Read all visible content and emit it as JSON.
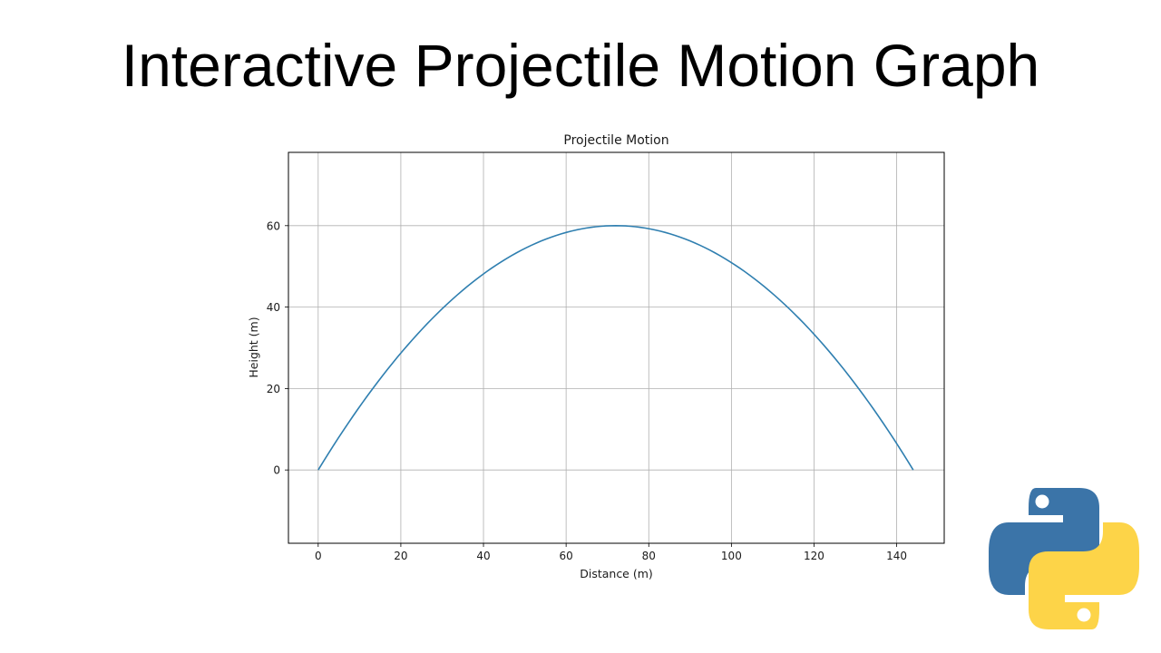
{
  "page": {
    "heading": "Interactive Projectile Motion Graph"
  },
  "logo": {
    "name": "python-logo-icon",
    "colors": {
      "blue": "#3b74a8",
      "yellow": "#fdd448"
    }
  },
  "chart_data": {
    "type": "line",
    "title": "Projectile Motion",
    "xlabel": "Distance (m)",
    "ylabel": "Height (m)",
    "xlim": [
      -7.2,
      151.5
    ],
    "ylim": [
      -18,
      78
    ],
    "xticks": [
      0,
      20,
      40,
      60,
      80,
      100,
      120,
      140
    ],
    "yticks": [
      0,
      20,
      40,
      60
    ],
    "xtick_labels": [
      "0",
      "20",
      "40",
      "60",
      "80",
      "100",
      "120",
      "140"
    ],
    "ytick_labels": [
      "0",
      "20",
      "40",
      "60"
    ],
    "grid": true,
    "line_color": "#2f7fb0",
    "series": [
      {
        "x": [
          0,
          7.2,
          14.4,
          21.6,
          28.8,
          36,
          43.2,
          50.4,
          57.6,
          64.8,
          72,
          79.2,
          86.4,
          93.6,
          100.8,
          108,
          115.2,
          122.4,
          129.6,
          136.8,
          144
        ],
        "y": [
          0,
          11.4,
          21.6,
          30.6,
          38.4,
          45,
          50.4,
          54.6,
          57.6,
          59.4,
          60,
          59.4,
          57.6,
          54.6,
          50.4,
          45,
          38.4,
          30.6,
          21.6,
          11.4,
          0
        ]
      }
    ]
  }
}
